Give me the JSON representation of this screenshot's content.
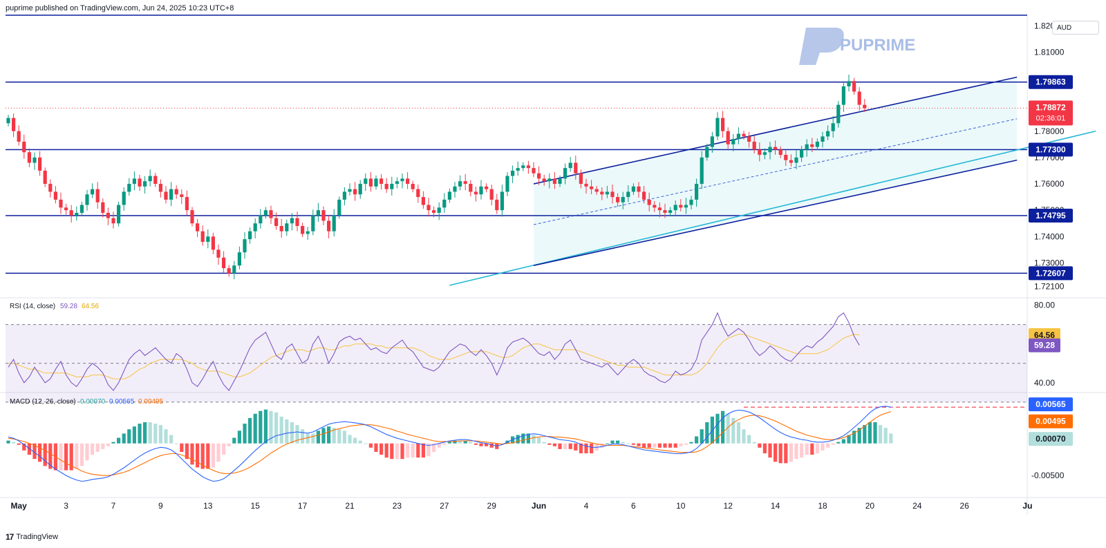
{
  "header": {
    "publisher_line": "puprime published on TradingView.com, Jun 24, 2025 10:23 UTC+8"
  },
  "currency": "AUD",
  "watermark": {
    "brand": "PUPRIME",
    "color": "#a9bde6"
  },
  "footer": {
    "brand": "TradingView",
    "logo_glyph": "17"
  },
  "colors": {
    "up": "#089981",
    "down": "#f23645",
    "hline": "#0c1f9c",
    "channel": "#0c1f9c",
    "trendline": "#23b7d6",
    "rsi": "#7e57c2",
    "rsi_ma": "#f6c343",
    "macd": "#2962ff",
    "signal": "#ff6d00",
    "hist_up_strong": "#26a69a",
    "hist_up_weak": "#b2dfdb",
    "hist_down_strong": "#ff5252",
    "hist_down_weak": "#ffcdd2"
  },
  "chart_data": [
    {
      "type": "candlestick",
      "title": "",
      "price_axis": {
        "ticks": [
          "1.82000",
          "1.81000",
          "1.80000",
          "1.79000",
          "1.78000",
          "1.77000",
          "1.76000",
          "1.75000",
          "1.74000",
          "1.73000",
          "1.72100"
        ],
        "ylim": [
          1.717,
          1.824
        ]
      },
      "x_axis": {
        "ticks": [
          "May",
          "3",
          "7",
          "9",
          "13",
          "15",
          "17",
          "21",
          "23",
          "27",
          "29",
          "Jun",
          "4",
          "6",
          "10",
          "12",
          "14",
          "18",
          "20",
          "24",
          "26",
          "Ju"
        ]
      },
      "horizontal_levels": [
        1.824,
        1.79863,
        1.773,
        1.74795,
        1.72607
      ],
      "level_labels": [
        "1.79863",
        "1.77300",
        "1.74795",
        "1.72607"
      ],
      "last_price": {
        "value": "1.78872",
        "countdown": "02:36:01",
        "y": 1.78872
      },
      "channel": {
        "upper": [
          [
            100,
            1.76
          ],
          [
            192,
            1.8005
          ]
        ],
        "lower": [
          [
            100,
            1.729
          ],
          [
            192,
            1.769
          ]
        ],
        "mid": [
          [
            100,
            1.7445
          ],
          [
            192,
            1.7847
          ]
        ]
      },
      "trendline": [
        [
          84,
          1.7215
        ],
        [
          207,
          1.78
        ]
      ],
      "candles_close": [
        1.785,
        1.78,
        1.776,
        1.772,
        1.768,
        1.77,
        1.765,
        1.76,
        1.757,
        1.754,
        1.751,
        1.75,
        1.748,
        1.749,
        1.752,
        1.756,
        1.758,
        1.753,
        1.749,
        1.747,
        1.745,
        1.752,
        1.757,
        1.76,
        1.762,
        1.759,
        1.761,
        1.763,
        1.76,
        1.757,
        1.754,
        1.758,
        1.756,
        1.755,
        1.75,
        1.745,
        1.742,
        1.738,
        1.74,
        1.735,
        1.732,
        1.728,
        1.726,
        1.729,
        1.734,
        1.739,
        1.742,
        1.745,
        1.748,
        1.75,
        1.747,
        1.744,
        1.742,
        1.745,
        1.747,
        1.744,
        1.741,
        1.742,
        1.748,
        1.75,
        1.746,
        1.742,
        1.748,
        1.754,
        1.757,
        1.758,
        1.756,
        1.76,
        1.762,
        1.759,
        1.762,
        1.76,
        1.758,
        1.76,
        1.761,
        1.762,
        1.76,
        1.758,
        1.755,
        1.752,
        1.75,
        1.749,
        1.751,
        1.754,
        1.757,
        1.759,
        1.761,
        1.76,
        1.757,
        1.756,
        1.759,
        1.758,
        1.754,
        1.75,
        1.757,
        1.763,
        1.765,
        1.766,
        1.767,
        1.766,
        1.764,
        1.762,
        1.761,
        1.762,
        1.76,
        1.762,
        1.766,
        1.768,
        1.764,
        1.76,
        1.759,
        1.758,
        1.757,
        1.756,
        1.757,
        1.755,
        1.753,
        1.755,
        1.757,
        1.759,
        1.757,
        1.754,
        1.752,
        1.751,
        1.75,
        1.749,
        1.75,
        1.752,
        1.751,
        1.752,
        1.754,
        1.76,
        1.77,
        1.774,
        1.778,
        1.785,
        1.78,
        1.775,
        1.777,
        1.779,
        1.778,
        1.776,
        1.773,
        1.771,
        1.772,
        1.774,
        1.773,
        1.771,
        1.769,
        1.768,
        1.77,
        1.773,
        1.775,
        1.774,
        1.776,
        1.778,
        1.78,
        1.783,
        1.79,
        1.797,
        1.799,
        1.795,
        1.79,
        1.7887
      ]
    },
    {
      "type": "line",
      "title": "RSI (14, close)",
      "series": [
        {
          "name": "RSI",
          "last": "59.28"
        },
        {
          "name": "RSI MA",
          "last": "64.56"
        }
      ],
      "axis_ticks": [
        "80.00",
        "40.00"
      ],
      "ylim": [
        36,
        82
      ],
      "bands": [
        70,
        50,
        30
      ],
      "rsi_values": [
        48,
        52,
        45,
        40,
        43,
        48,
        44,
        40,
        42,
        47,
        51,
        44,
        40,
        38,
        42,
        47,
        50,
        48,
        45,
        39,
        36,
        40,
        46,
        52,
        55,
        57,
        54,
        56,
        58,
        55,
        52,
        50,
        55,
        53,
        47,
        40,
        38,
        42,
        47,
        51,
        44,
        39,
        36,
        41,
        46,
        52,
        58,
        62,
        64,
        66,
        60,
        54,
        52,
        58,
        60,
        55,
        50,
        52,
        60,
        64,
        58,
        50,
        55,
        61,
        63,
        64,
        62,
        63,
        60,
        57,
        58,
        56,
        55,
        58,
        60,
        62,
        58,
        56,
        52,
        48,
        47,
        46,
        48,
        52,
        56,
        58,
        60,
        59,
        56,
        54,
        57,
        54,
        50,
        44,
        50,
        58,
        61,
        62,
        63,
        61,
        58,
        55,
        54,
        56,
        52,
        55,
        60,
        62,
        57,
        52,
        51,
        50,
        49,
        48,
        50,
        47,
        44,
        47,
        50,
        52,
        50,
        46,
        44,
        43,
        41,
        40,
        42,
        46,
        44,
        45,
        47,
        52,
        62,
        66,
        70,
        76,
        69,
        64,
        66,
        68,
        66,
        62,
        57,
        54,
        56,
        59,
        57,
        54,
        52,
        51,
        54,
        57,
        59,
        58,
        61,
        63,
        66,
        69,
        74,
        76,
        71,
        64,
        59.28
      ],
      "rsi_ma_values": [
        50,
        50,
        49,
        48,
        47,
        47,
        46,
        45,
        45,
        45,
        45,
        45,
        44,
        43,
        43,
        43,
        44,
        44,
        44,
        43,
        42,
        42,
        42,
        43,
        45,
        47,
        48,
        50,
        51,
        52,
        52,
        52,
        52,
        52,
        51,
        50,
        48,
        47,
        46,
        46,
        46,
        45,
        44,
        43,
        43,
        44,
        45,
        47,
        49,
        51,
        53,
        54,
        55,
        56,
        57,
        57,
        57,
        56,
        57,
        58,
        58,
        57,
        57,
        58,
        59,
        59,
        60,
        60,
        60,
        60,
        59,
        59,
        58,
        58,
        58,
        58,
        58,
        58,
        57,
        56,
        54,
        53,
        52,
        52,
        52,
        53,
        54,
        55,
        56,
        56,
        56,
        56,
        55,
        54,
        53,
        53,
        54,
        56,
        58,
        59,
        60,
        60,
        59,
        58,
        57,
        57,
        57,
        57,
        57,
        56,
        55,
        54,
        53,
        52,
        51,
        50,
        49,
        49,
        48,
        48,
        48,
        48,
        47,
        46,
        45,
        44,
        44,
        44,
        44,
        44,
        44,
        45,
        47,
        50,
        54,
        58,
        61,
        63,
        64,
        65,
        65,
        64,
        63,
        62,
        61,
        60,
        59,
        58,
        57,
        56,
        55,
        55,
        55,
        55,
        55,
        56,
        57,
        59,
        61,
        63,
        64,
        65,
        64.56
      ]
    },
    {
      "type": "line",
      "title": "MACD (12, 26, close)",
      "series": [
        {
          "name": "Histogram",
          "last": "0.00070"
        },
        {
          "name": "MACD",
          "last": "0.00565"
        },
        {
          "name": "Signal",
          "last": "0.00495"
        }
      ],
      "axis_ticks": [
        "-0.00500"
      ],
      "ylim": [
        -0.008,
        0.0075
      ],
      "reference_level": 0.00565,
      "macd_values": [
        0.001,
        0.0008,
        0.0004,
        -0.0002,
        -0.0008,
        -0.0014,
        -0.002,
        -0.0027,
        -0.0034,
        -0.004,
        -0.0045,
        -0.005,
        -0.0054,
        -0.0057,
        -0.0059,
        -0.0058,
        -0.0056,
        -0.0055,
        -0.0054,
        -0.0052,
        -0.0048,
        -0.0043,
        -0.0038,
        -0.0032,
        -0.0026,
        -0.002,
        -0.0015,
        -0.0011,
        -0.0008,
        -0.0006,
        -0.0007,
        -0.001,
        -0.0016,
        -0.0024,
        -0.0032,
        -0.004,
        -0.0046,
        -0.0052,
        -0.0056,
        -0.0059,
        -0.0058,
        -0.0055,
        -0.0049,
        -0.0042,
        -0.0035,
        -0.0027,
        -0.0019,
        -0.0011,
        -0.0004,
        0.0003,
        0.0008,
        0.0012,
        0.0014,
        0.0016,
        0.0017,
        0.0018,
        0.0017,
        0.0016,
        0.0018,
        0.0022,
        0.0026,
        0.003,
        0.0032,
        0.0033,
        0.0034,
        0.0033,
        0.0032,
        0.0031,
        0.0029,
        0.0026,
        0.0022,
        0.0018,
        0.0014,
        0.0011,
        0.0008,
        0.0006,
        0.0004,
        0.0002,
        0.0,
        -0.0002,
        -0.0003,
        -0.0002,
        0.0,
        0.0002,
        0.0004,
        0.0005,
        0.0006,
        0.0006,
        0.0005,
        0.0003,
        0.0001,
        0.0,
        -0.0002,
        -0.0004,
        -0.0002,
        0.0002,
        0.0006,
        0.0009,
        0.0012,
        0.0014,
        0.0015,
        0.0014,
        0.0012,
        0.001,
        0.0008,
        0.0006,
        0.0005,
        0.0004,
        0.0002,
        -0.0002,
        -0.0004,
        -0.0006,
        -0.0006,
        -0.0005,
        -0.0003,
        -0.0001,
        -0.0001,
        -0.0002,
        -0.0004,
        -0.0006,
        -0.0008,
        -0.001,
        -0.0011,
        -0.0012,
        -0.0013,
        -0.0014,
        -0.0015,
        -0.0016,
        -0.0016,
        -0.0015,
        -0.0013,
        -0.0008,
        0.0,
        0.001,
        0.002,
        0.003,
        0.004,
        0.0046,
        0.005,
        0.0052,
        0.0051,
        0.0049,
        0.0045,
        0.004,
        0.0034,
        0.0028,
        0.0022,
        0.0017,
        0.0013,
        0.001,
        0.0008,
        0.0006,
        0.0005,
        0.0003,
        0.0002,
        0.0002,
        0.0003,
        0.0005,
        0.0008,
        0.0012,
        0.0018,
        0.0025,
        0.0032,
        0.004,
        0.0048,
        0.0054,
        0.0057,
        0.0058,
        0.00565
      ],
      "signal_values": [
        0.0008,
        0.0007,
        0.0005,
        0.0003,
        0.0,
        -0.0003,
        -0.0007,
        -0.0011,
        -0.0016,
        -0.0021,
        -0.0026,
        -0.0031,
        -0.0035,
        -0.0039,
        -0.0043,
        -0.0046,
        -0.0048,
        -0.0049,
        -0.005,
        -0.005,
        -0.0049,
        -0.0047,
        -0.0045,
        -0.0042,
        -0.0038,
        -0.0034,
        -0.003,
        -0.0026,
        -0.0022,
        -0.0019,
        -0.0017,
        -0.0016,
        -0.0016,
        -0.0018,
        -0.0021,
        -0.0025,
        -0.0029,
        -0.0034,
        -0.0038,
        -0.0042,
        -0.0045,
        -0.0047,
        -0.0047,
        -0.0046,
        -0.0044,
        -0.0041,
        -0.0037,
        -0.0032,
        -0.0027,
        -0.0021,
        -0.0015,
        -0.001,
        -0.0005,
        -0.0001,
        0.0002,
        0.0005,
        0.0007,
        0.0009,
        0.0011,
        0.0013,
        0.0015,
        0.0018,
        0.0021,
        0.0023,
        0.0025,
        0.0027,
        0.0028,
        0.0029,
        0.0029,
        0.0029,
        0.0028,
        0.0026,
        0.0024,
        0.0022,
        0.0019,
        0.0017,
        0.0014,
        0.0012,
        0.001,
        0.0008,
        0.0006,
        0.0004,
        0.0003,
        0.0003,
        0.0003,
        0.0003,
        0.0004,
        0.0004,
        0.0004,
        0.0004,
        0.0003,
        0.0002,
        0.0001,
        0.0,
        -0.0001,
        0.0,
        0.0001,
        0.0003,
        0.0005,
        0.0007,
        0.0009,
        0.001,
        0.0011,
        0.0011,
        0.001,
        0.001,
        0.0009,
        0.0008,
        0.0007,
        0.0005,
        0.0003,
        0.0001,
        -0.0001,
        -0.0002,
        -0.0003,
        -0.0003,
        -0.0003,
        -0.0003,
        -0.0004,
        -0.0005,
        -0.0006,
        -0.0007,
        -0.0008,
        -0.0009,
        -0.001,
        -0.0011,
        -0.0012,
        -0.0013,
        -0.0014,
        -0.0014,
        -0.0014,
        -0.0013,
        -0.001,
        -0.0005,
        0.0001,
        0.0009,
        0.0017,
        0.0025,
        0.0032,
        0.0037,
        0.0041,
        0.0043,
        0.0044,
        0.0043,
        0.0041,
        0.0038,
        0.0035,
        0.0031,
        0.0027,
        0.0023,
        0.0019,
        0.0016,
        0.0013,
        0.0011,
        0.0009,
        0.0007,
        0.0006,
        0.0006,
        0.0007,
        0.0009,
        0.0012,
        0.0016,
        0.0021,
        0.0027,
        0.0033,
        0.0039,
        0.0044,
        0.0047,
        0.00495
      ]
    }
  ]
}
